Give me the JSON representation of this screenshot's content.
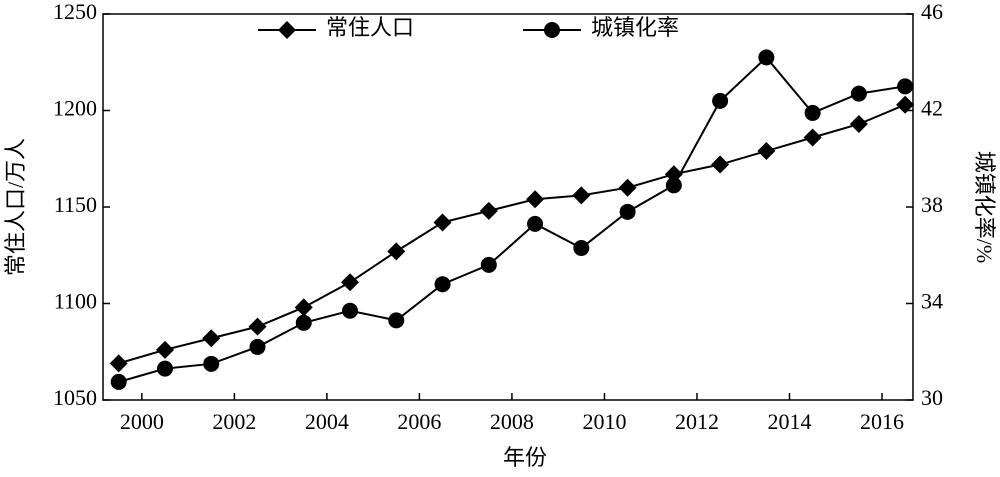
{
  "chart_data": {
    "type": "line",
    "x": [
      1999.5,
      2000.5,
      2001.5,
      2002.5,
      2003.5,
      2004.5,
      2005.5,
      2006.5,
      2007.5,
      2008.5,
      2009.5,
      2010.5,
      2011.5,
      2012.5,
      2013.5,
      2014.5,
      2015.5,
      2016.5
    ],
    "xlim": [
      1999.16,
      2016.67
    ],
    "xticks": [
      2000,
      2002,
      2004,
      2006,
      2008,
      2010,
      2012,
      2014,
      2016
    ],
    "ylim": [
      1050,
      1250
    ],
    "yticks": [
      1050,
      1100,
      1150,
      1200,
      1250
    ],
    "y2lim": [
      30,
      46
    ],
    "y2ticks": [
      30,
      34,
      38,
      42,
      46
    ],
    "xlabel": "年份",
    "ylabel": "常住人口/万人",
    "y2label": "城镇化率/%",
    "legend": "top",
    "series": [
      {
        "name": "常住人口",
        "color": "#000000",
        "marker": "diamond",
        "values": [
          1069,
          1076,
          1082,
          1088,
          1098,
          1111,
          1127,
          1142,
          1148,
          1154,
          1156,
          1160,
          1167,
          1172,
          1179,
          1186,
          1193,
          1203
        ]
      },
      {
        "name": "城镇化率",
        "color": "#000000",
        "marker": "circle",
        "axis": "y2",
        "values": [
          30.75,
          31.3,
          31.5,
          32.2,
          33.2,
          33.7,
          33.3,
          34.8,
          35.6,
          37.3,
          36.3,
          37.8,
          38.9,
          42.4,
          44.2,
          41.9,
          42.7,
          43.0
        ]
      }
    ]
  }
}
